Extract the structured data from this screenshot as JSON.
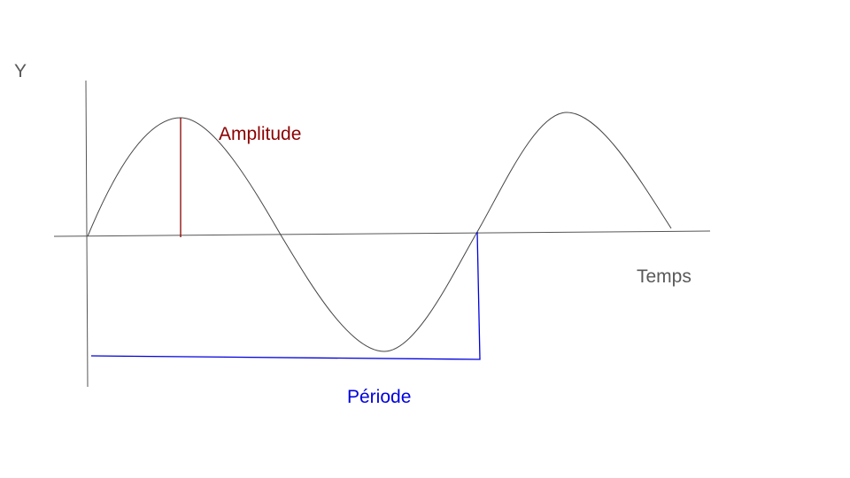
{
  "labels": {
    "y_axis": "Y",
    "time_axis": "Temps",
    "amplitude": "Amplitude",
    "period": "Période"
  },
  "colors": {
    "axis": "#555555",
    "curve": "#444444",
    "amplitude": "#8b0000",
    "period": "#0000dd",
    "axis_text": "#595959"
  }
}
